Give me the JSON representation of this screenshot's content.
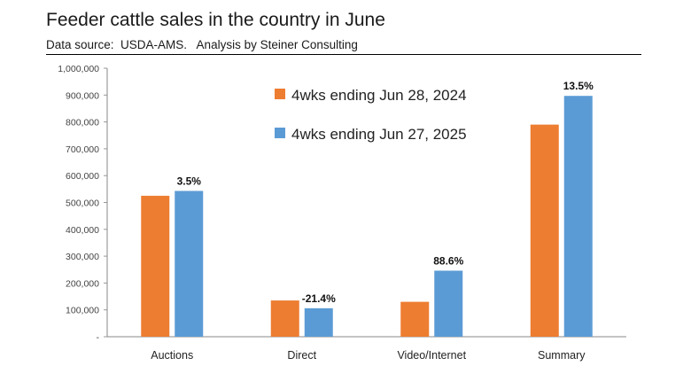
{
  "chart_data": {
    "type": "bar",
    "title": "Feeder cattle sales in the country in June",
    "subtitle": "Data source:  USDA-AMS.   Analysis by Steiner Consulting",
    "categories": [
      "Auctions",
      "Direct",
      "Video/Internet",
      "Summary"
    ],
    "series": [
      {
        "name": "4wks ending Jun 28, 2024",
        "color": "#ED7D31",
        "values": [
          525000,
          135000,
          130000,
          790000
        ]
      },
      {
        "name": "4wks ending Jun 27, 2025",
        "color": "#5B9BD5",
        "values": [
          543000,
          106000,
          246000,
          897000
        ]
      }
    ],
    "data_labels": [
      "3.5%",
      "-21.4%",
      "88.6%",
      "13.5%"
    ],
    "ylim": [
      0,
      1000000
    ],
    "y_ticks": [
      {
        "value": 0,
        "label": "-"
      },
      {
        "value": 100000,
        "label": "100,000"
      },
      {
        "value": 200000,
        "label": "200,000"
      },
      {
        "value": 300000,
        "label": "300,000"
      },
      {
        "value": 400000,
        "label": "400,000"
      },
      {
        "value": 500000,
        "label": "500,000"
      },
      {
        "value": 600000,
        "label": "600,000"
      },
      {
        "value": 700000,
        "label": "700,000"
      },
      {
        "value": 800000,
        "label": "800,000"
      },
      {
        "value": 900000,
        "label": "900,000"
      },
      {
        "value": 1000000,
        "label": "1,000,000"
      }
    ],
    "grid": false,
    "legend_position": "top-center"
  }
}
